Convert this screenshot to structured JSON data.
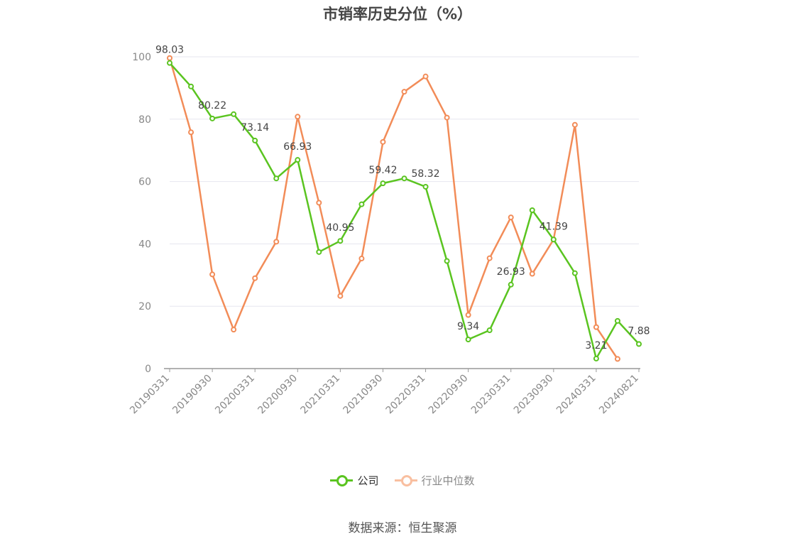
{
  "title": "市销率历史分位（%）",
  "source": "数据来源：恒生聚源",
  "colors": {
    "company": "#5ac420",
    "industry": "#f28c58",
    "legend_industry_faded": "#f9bfa0",
    "axis": "#999999",
    "grid": "#e6e6ef"
  },
  "chart_data": {
    "type": "line",
    "title": "市销率历史分位（%）",
    "ylim": [
      0,
      100
    ],
    "y_ticks": [
      0,
      20,
      40,
      60,
      80,
      100
    ],
    "grid": true,
    "legend_position": "bottom",
    "x_tick_labels": [
      "20190331",
      "20190930",
      "20200331",
      "20200930",
      "20210331",
      "20210930",
      "20220331",
      "20220930",
      "20230331",
      "20230930",
      "20240331",
      "20240821"
    ],
    "series": [
      {
        "name": "公司",
        "values": [
          98.03,
          90.5,
          80.22,
          81.6,
          73.14,
          61.0,
          66.93,
          37.4,
          40.95,
          52.7,
          59.42,
          61.0,
          58.32,
          34.5,
          9.34,
          12.3,
          26.93,
          50.8,
          41.39,
          30.6,
          3.21,
          15.3,
          7.88
        ]
      },
      {
        "name": "行业中位数",
        "values": [
          99.6,
          75.8,
          30.2,
          12.5,
          29.0,
          40.7,
          80.8,
          53.2,
          23.3,
          35.3,
          72.7,
          88.8,
          93.7,
          80.5,
          17.2,
          35.4,
          48.5,
          30.4,
          41.4,
          78.2,
          13.3,
          3.1,
          null
        ]
      }
    ],
    "data_labels": [
      {
        "index": 0,
        "text": "98.03"
      },
      {
        "index": 2,
        "text": "80.22"
      },
      {
        "index": 4,
        "text": "73.14"
      },
      {
        "index": 6,
        "text": "66.93"
      },
      {
        "index": 8,
        "text": "40.95"
      },
      {
        "index": 10,
        "text": "59.42"
      },
      {
        "index": 12,
        "text": "58.32"
      },
      {
        "index": 14,
        "text": "9.34"
      },
      {
        "index": 16,
        "text": "26.93"
      },
      {
        "index": 18,
        "text": "41.39"
      },
      {
        "index": 20,
        "text": "3.21"
      },
      {
        "index": 22,
        "text": "7.88"
      }
    ]
  }
}
